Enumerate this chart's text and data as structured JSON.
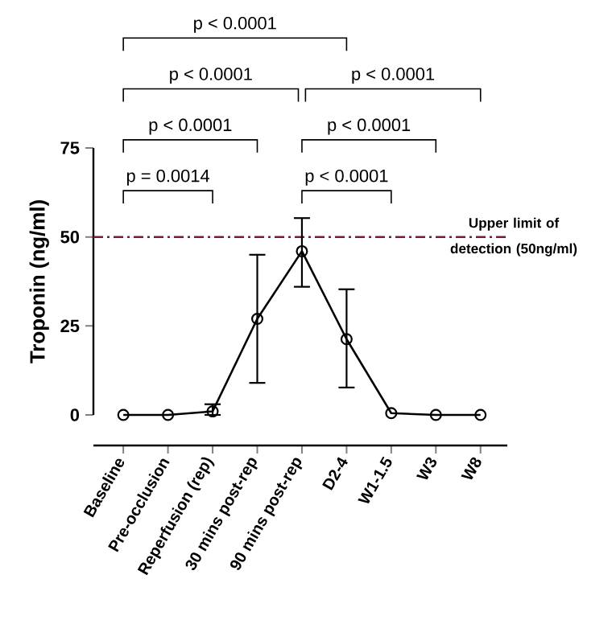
{
  "chart_data": {
    "type": "line",
    "ylabel": "Troponin (ng/ml)",
    "categories": [
      "Baseline",
      "Pre-occlusion",
      "Reperfusion (rep)",
      "30 mins post-rep",
      "90 mins post-rep",
      "D2-4",
      "W1-1.5",
      "W3",
      "W8"
    ],
    "values": [
      0,
      0,
      1,
      27,
      46,
      21.3,
      0.5,
      0,
      0
    ],
    "errors": [
      null,
      null,
      [
        0,
        3
      ],
      [
        9,
        45
      ],
      [
        36,
        55.3
      ],
      [
        7.7,
        35.3
      ],
      null,
      null,
      null
    ],
    "color": "#000000",
    "marker": "circle",
    "line_style": "solid",
    "grid": false,
    "ylim": [
      0,
      75
    ],
    "yticks": [
      0,
      25,
      50,
      75
    ],
    "ref_lines": [
      {
        "axis": "y",
        "value": 50,
        "label": "Upper limit of detection (50ng/ml)",
        "color": "#7a1a33"
      }
    ],
    "annotations": [
      "p < 0.0001",
      "p < 0.0001",
      "p < 0.0001",
      "p < 0.0001",
      "p < 0.0001",
      "p = 0.0014",
      "p < 0.0001"
    ]
  }
}
